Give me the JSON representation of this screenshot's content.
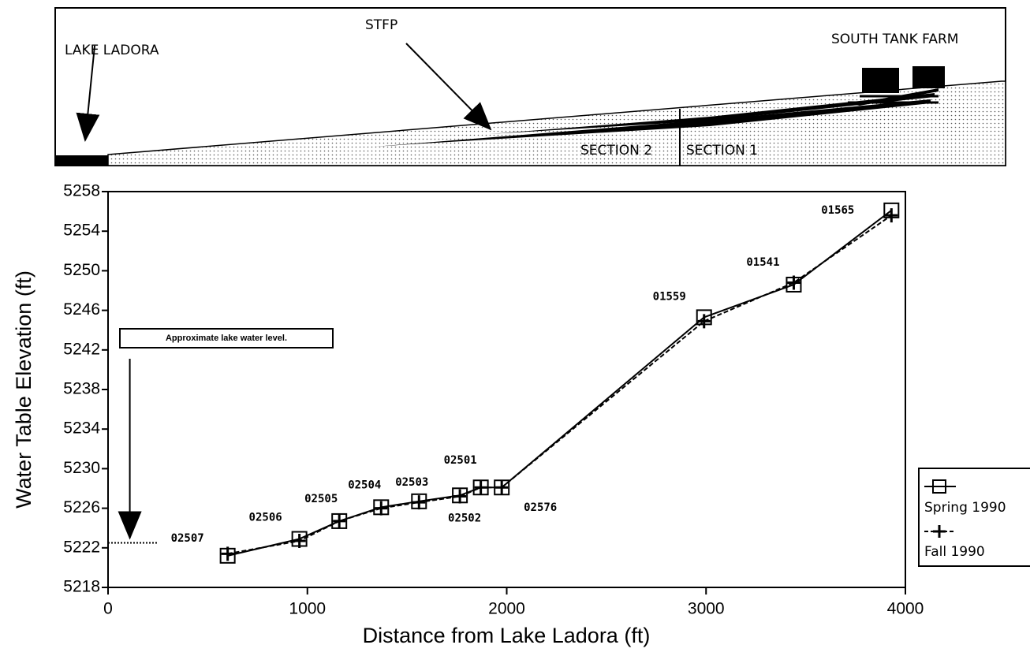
{
  "cross_section": {
    "labels": [
      "LAKE LADORA",
      "STFP",
      "SOUTH TANK FARM",
      "SECTION 2",
      "SECTION 1"
    ]
  },
  "chart_data": {
    "type": "line",
    "x_label": "Distance from Lake Ladora (ft)",
    "y_label": "Water Table Elevation (ft)",
    "xlim": [
      0,
      4000
    ],
    "xticks": [
      0,
      1000,
      2000,
      3000,
      4000
    ],
    "ylim": [
      5218,
      5258
    ],
    "yticks": [
      5218,
      5222,
      5226,
      5230,
      5234,
      5238,
      5242,
      5246,
      5250,
      5254,
      5258
    ],
    "x": [
      600,
      960,
      1160,
      1370,
      1560,
      1765,
      1870,
      1975,
      2990,
      3440,
      3930
    ],
    "point_labels": [
      "02507",
      "02506",
      "02505",
      "02504",
      "02503",
      "02502",
      "02501",
      "02576",
      "01559",
      "01541",
      "01565"
    ],
    "series": [
      {
        "name": "Spring 1990",
        "color": "#000000",
        "marker": "square",
        "dashed": false,
        "values": [
          5221.2,
          5222.9,
          5224.7,
          5226.1,
          5226.7,
          5227.3,
          5228.1,
          5228.1,
          5245.3,
          5248.6,
          5256.1
        ]
      },
      {
        "name": "Fall 1990",
        "color": "#000000",
        "marker": "plus",
        "dashed": true,
        "values": [
          5221.4,
          5222.7,
          5224.7,
          5226.0,
          5226.6,
          5227.2,
          5228.1,
          5228.1,
          5244.9,
          5248.8,
          5255.6
        ]
      }
    ],
    "lake_level": {
      "label": "Approximate lake water level.",
      "value": 5222.5,
      "x": [
        0,
        250
      ]
    }
  }
}
